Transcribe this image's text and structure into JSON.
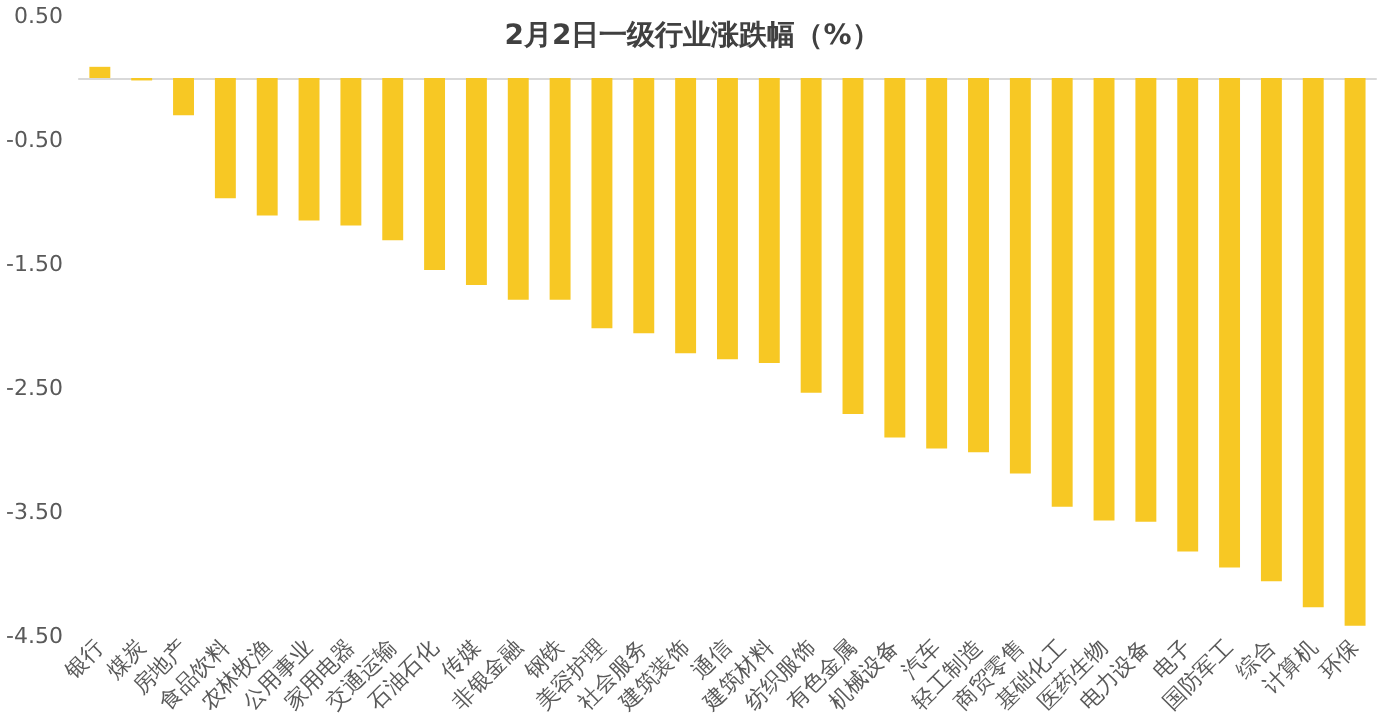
{
  "chart_data": {
    "type": "bar",
    "title": "2月2日一级行业涨跌幅（%）",
    "categories": [
      "银行",
      "煤炭",
      "房地产",
      "食品饮料",
      "农林牧渔",
      "公用事业",
      "家用电器",
      "交通运输",
      "石油石化",
      "传媒",
      "非银金融",
      "钢铁",
      "美容护理",
      "社会服务",
      "建筑装饰",
      "通信",
      "建筑材料",
      "纺织服饰",
      "有色金属",
      "机械设备",
      "汽车",
      "轻工制造",
      "商贸零售",
      "基础化工",
      "医药生物",
      "电力设备",
      "电子",
      "国防军工",
      "综合",
      "计算机",
      "环保"
    ],
    "values": [
      0.09,
      -0.02,
      -0.3,
      -0.97,
      -1.11,
      -1.15,
      -1.19,
      -1.31,
      -1.55,
      -1.67,
      -1.79,
      -1.79,
      -2.02,
      -2.06,
      -2.22,
      -2.27,
      -2.3,
      -2.54,
      -2.71,
      -2.9,
      -2.99,
      -3.02,
      -3.19,
      -3.46,
      -3.57,
      -3.58,
      -3.82,
      -3.95,
      -4.06,
      -4.27,
      -4.42
    ],
    "color": "#f7c824",
    "ylim": [
      -4.5,
      0.5
    ],
    "yticks": [
      {
        "value": -4.5,
        "label": "-4.50"
      },
      {
        "value": -3.5,
        "label": "-3.50"
      },
      {
        "value": -2.5,
        "label": "-2.50"
      },
      {
        "value": -1.5,
        "label": "-1.50"
      },
      {
        "value": -0.5,
        "label": "-0.50"
      },
      {
        "value": 0.5,
        "label": "0.50"
      }
    ],
    "grid": false
  }
}
